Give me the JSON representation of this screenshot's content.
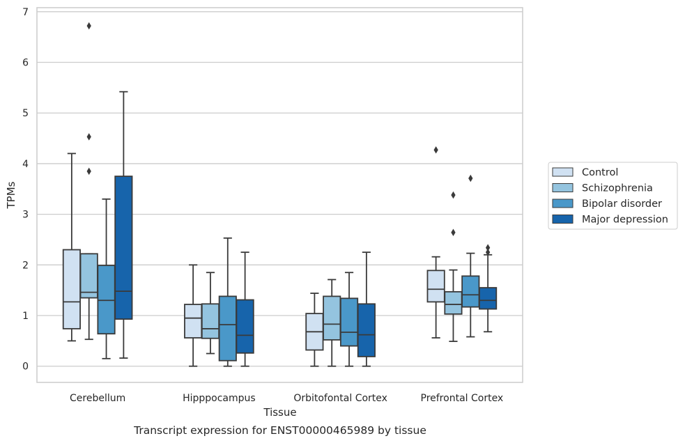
{
  "chart_data": {
    "type": "box",
    "xlabel": "Tissue",
    "ylabel": "TPMs",
    "caption": "Transcript expression for ENST00000465989 by tissue",
    "ylim": [
      -0.32,
      7.08
    ],
    "yticks": [
      0,
      1,
      2,
      3,
      4,
      5,
      6,
      7
    ],
    "grid": true,
    "legend_position": "right",
    "categories": [
      "Cerebellum",
      "Hipppocampus",
      "Orbitofontal Cortex",
      "Prefrontal Cortex"
    ],
    "series": [
      {
        "name": "Control",
        "color": "#d0e1f2",
        "boxes": [
          {
            "whislo": 0.5,
            "q1": 0.74,
            "med": 1.27,
            "q3": 2.3,
            "whishi": 4.2,
            "fliers": []
          },
          {
            "whislo": 0.0,
            "q1": 0.56,
            "med": 0.95,
            "q3": 1.22,
            "whishi": 2.0,
            "fliers": []
          },
          {
            "whislo": 0.0,
            "q1": 0.32,
            "med": 0.68,
            "q3": 1.04,
            "whishi": 1.44,
            "fliers": []
          },
          {
            "whislo": 0.56,
            "q1": 1.27,
            "med": 1.52,
            "q3": 1.89,
            "whishi": 2.16,
            "fliers": [
              4.27
            ]
          }
        ]
      },
      {
        "name": "Schizophrenia",
        "color": "#94c4df",
        "boxes": [
          {
            "whislo": 0.53,
            "q1": 1.35,
            "med": 1.46,
            "q3": 2.22,
            "whishi": 2.22,
            "fliers": [
              3.85,
              4.53,
              6.72
            ]
          },
          {
            "whislo": 0.25,
            "q1": 0.55,
            "med": 0.74,
            "q3": 1.23,
            "whishi": 1.85,
            "fliers": []
          },
          {
            "whislo": 0.0,
            "q1": 0.52,
            "med": 0.83,
            "q3": 1.38,
            "whishi": 1.71,
            "fliers": []
          },
          {
            "whislo": 0.49,
            "q1": 1.03,
            "med": 1.22,
            "q3": 1.47,
            "whishi": 1.9,
            "fliers": [
              2.64,
              3.38
            ]
          }
        ]
      },
      {
        "name": "Bipolar disorder",
        "color": "#4a98c9",
        "boxes": [
          {
            "whislo": 0.15,
            "q1": 0.64,
            "med": 1.3,
            "q3": 1.99,
            "whishi": 3.3,
            "fliers": []
          },
          {
            "whislo": 0.0,
            "q1": 0.11,
            "med": 0.82,
            "q3": 1.38,
            "whishi": 2.53,
            "fliers": []
          },
          {
            "whislo": 0.0,
            "q1": 0.4,
            "med": 0.67,
            "q3": 1.34,
            "whishi": 1.85,
            "fliers": []
          },
          {
            "whislo": 0.58,
            "q1": 1.17,
            "med": 1.41,
            "q3": 1.78,
            "whishi": 2.23,
            "fliers": [
              3.71
            ]
          }
        ]
      },
      {
        "name": "Major depression",
        "color": "#1764ab",
        "boxes": [
          {
            "whislo": 0.16,
            "q1": 0.93,
            "med": 1.48,
            "q3": 3.75,
            "whishi": 5.42,
            "fliers": []
          },
          {
            "whislo": 0.0,
            "q1": 0.26,
            "med": 0.61,
            "q3": 1.31,
            "whishi": 2.25,
            "fliers": []
          },
          {
            "whislo": 0.0,
            "q1": 0.19,
            "med": 0.62,
            "q3": 1.23,
            "whishi": 2.25,
            "fliers": []
          },
          {
            "whislo": 0.68,
            "q1": 1.13,
            "med": 1.3,
            "q3": 1.55,
            "whishi": 2.2,
            "fliers": [
              2.25,
              2.34
            ]
          }
        ]
      }
    ]
  }
}
